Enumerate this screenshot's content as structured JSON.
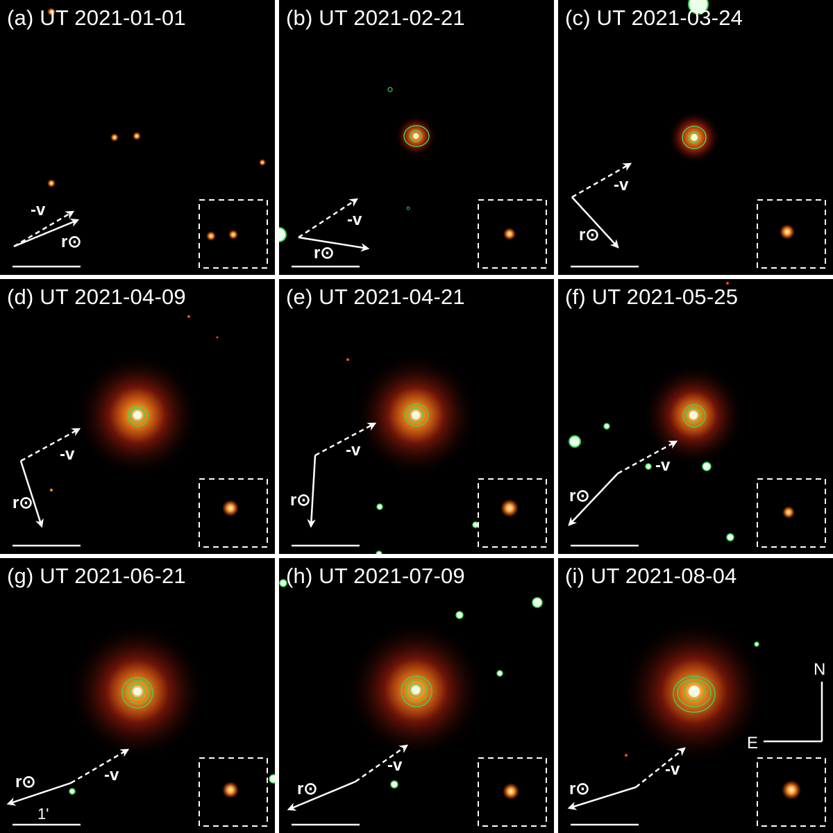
{
  "figure": {
    "panels": [
      {
        "id": "a",
        "label": "(a) UT 2021-01-01"
      },
      {
        "id": "b",
        "label": "(b) UT 2021-02-21"
      },
      {
        "id": "c",
        "label": "(c) UT 2021-03-24"
      },
      {
        "id": "d",
        "label": "(d) UT 2021-04-09"
      },
      {
        "id": "e",
        "label": "(e) UT 2021-04-21"
      },
      {
        "id": "f",
        "label": "(f) UT 2021-05-25"
      },
      {
        "id": "g",
        "label": "(g) UT 2021-06-21"
      },
      {
        "id": "h",
        "label": "(h) UT 2021-07-09"
      },
      {
        "id": "i",
        "label": "(i) UT 2021-08-04"
      }
    ],
    "arrow_labels": {
      "velocity": "-v",
      "sun": "r⊙"
    },
    "scale_bar_label": "1'",
    "compass": {
      "north": "N",
      "east": "E"
    }
  },
  "colors": {
    "background": "#000000",
    "contour": "#39d353",
    "arrow": "#ffffff",
    "coma_core": "#fff3c4",
    "coma_halo": "#8b1a0a",
    "panel_gap": "#ffffff"
  }
}
